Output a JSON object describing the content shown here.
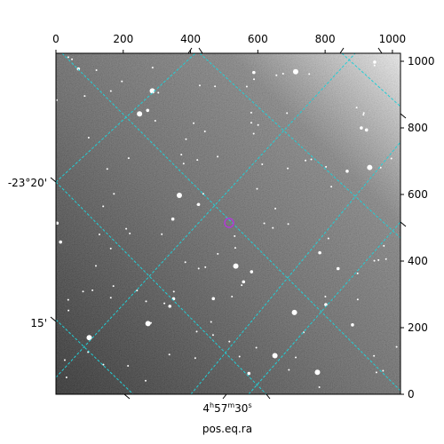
{
  "image": {
    "description_free": true,
    "colormap": "gray",
    "grid_color": "#22cfd6",
    "marker_color": "#b03bd4"
  },
  "axes": {
    "top_ticks": [
      "0",
      "200",
      "400",
      "600",
      "800",
      "1000"
    ],
    "right_ticks": [
      "0",
      "200",
      "400",
      "600",
      "800",
      "1000"
    ],
    "left_dec_labels": [
      "-23°20'",
      "15'"
    ],
    "bottom_ra_label": {
      "h": "4",
      "hs": "h",
      "m": "57",
      "ms": "m",
      "s": "30",
      "ss": "s"
    },
    "xlabel": "pos.eq.ra"
  }
}
